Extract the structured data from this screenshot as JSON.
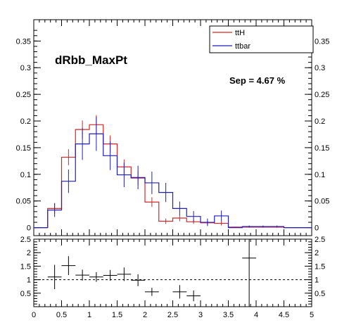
{
  "chart_data": [
    {
      "type": "histogram",
      "title": "dRbb_MaxPt",
      "annotation": "Sep = 4.67 %",
      "xlim": [
        0,
        5
      ],
      "ylim": [
        -0.015,
        0.39
      ],
      "bin_width": 0.25,
      "bin_edges": [
        0,
        0.25,
        0.5,
        0.75,
        1.0,
        1.25,
        1.5,
        1.75,
        2.0,
        2.25,
        2.5,
        2.75,
        3.0,
        3.25,
        3.5,
        3.75,
        4.0,
        4.25,
        4.5,
        4.75,
        5.0
      ],
      "yticks": [
        0,
        0.05,
        0.1,
        0.15,
        0.2,
        0.25,
        0.3,
        0.35
      ],
      "ytick_labels": [
        "0",
        "0.05",
        "0.1",
        "0.15",
        "0.2",
        "0.25",
        "0.3",
        "0.35"
      ],
      "legend_position": "top-right",
      "series": [
        {
          "name": "ttH",
          "color": "#d62728",
          "values": [
            0,
            0.036,
            0.132,
            0.184,
            0.193,
            0.157,
            0.114,
            0.093,
            0.048,
            0.012,
            0.018,
            0.011,
            0.009,
            0.008,
            0.001,
            0.001,
            0.001,
            0.001,
            0,
            0
          ],
          "errors": [
            0,
            0.01,
            0.015,
            0.017,
            0.018,
            0.016,
            0.014,
            0.013,
            0.009,
            0.005,
            0.006,
            0.004,
            0.004,
            0.004,
            0.001,
            0.001,
            0.001,
            0.001,
            0,
            0
          ]
        },
        {
          "name": "ttbar",
          "color": "#1f1fbf",
          "values": [
            0,
            0.033,
            0.087,
            0.157,
            0.176,
            0.135,
            0.099,
            0.094,
            0.084,
            0.066,
            0.036,
            0.021,
            0.01,
            0.022,
            0,
            0.002,
            0.002,
            0.002,
            0,
            0
          ],
          "errors": [
            0,
            0.013,
            0.022,
            0.03,
            0.032,
            0.027,
            0.023,
            0.022,
            0.021,
            0.018,
            0.013,
            0.01,
            0.007,
            0.01,
            0,
            0.002,
            0.002,
            0.002,
            0,
            0
          ]
        }
      ]
    },
    {
      "type": "ratio",
      "xlim": [
        0,
        5
      ],
      "ylim": [
        0,
        2.5
      ],
      "reference_line": 1,
      "xticks": [
        0,
        0.5,
        1,
        1.5,
        2,
        2.5,
        3,
        3.5,
        4,
        4.5,
        5
      ],
      "xtick_labels": [
        "0",
        "0.5",
        "1",
        "1.5",
        "2",
        "2.5",
        "3",
        "3.5",
        "4",
        "4.5",
        "5"
      ],
      "yticks": [
        0.5,
        1,
        1.5,
        2,
        2.5
      ],
      "ytick_labels": [
        "0.5",
        "1",
        "1.5",
        "2",
        "2.5"
      ],
      "points": [
        {
          "x": 0.375,
          "y": 1.1,
          "ex": 0.125,
          "ey": 0.45
        },
        {
          "x": 0.625,
          "y": 1.52,
          "ex": 0.125,
          "ey": 0.35
        },
        {
          "x": 0.875,
          "y": 1.17,
          "ex": 0.125,
          "ey": 0.2
        },
        {
          "x": 1.125,
          "y": 1.1,
          "ex": 0.125,
          "ey": 0.18
        },
        {
          "x": 1.375,
          "y": 1.16,
          "ex": 0.125,
          "ey": 0.2
        },
        {
          "x": 1.625,
          "y": 1.2,
          "ex": 0.125,
          "ey": 0.25
        },
        {
          "x": 1.875,
          "y": 0.98,
          "ex": 0.125,
          "ey": 0.22
        },
        {
          "x": 2.125,
          "y": 0.55,
          "ex": 0.125,
          "ey": 0.15
        },
        {
          "x": 2.625,
          "y": 0.55,
          "ex": 0.125,
          "ey": 0.25
        },
        {
          "x": 2.875,
          "y": 0.4,
          "ex": 0.125,
          "ey": 0.2
        },
        {
          "x": 3.875,
          "y": 1.8,
          "ex": 0.125,
          "ey": 2.0
        }
      ]
    }
  ]
}
